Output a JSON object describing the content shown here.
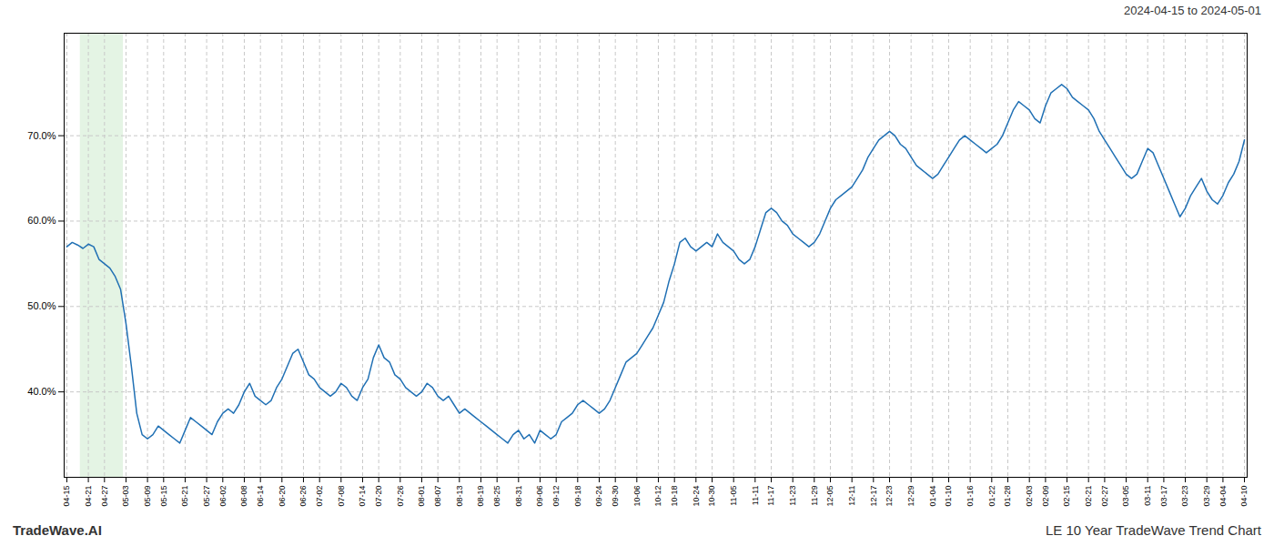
{
  "chart_data": {
    "type": "line",
    "title": "2024-04-15 to 2024-05-01",
    "footer_left": "TradeWave.AI",
    "footer_right": "LE 10 Year TradeWave Trend Chart",
    "color": "#2070b4",
    "ylim": [
      30,
      82
    ],
    "yticks": [
      {
        "value": 40.0,
        "label": "40.0%"
      },
      {
        "value": 50.0,
        "label": "50.0%"
      },
      {
        "value": 60.0,
        "label": "60.0%"
      },
      {
        "value": 70.0,
        "label": "70.0%"
      }
    ],
    "grid": true,
    "highlight": {
      "from": 3,
      "to": 10,
      "color": "#d8f0d8"
    },
    "categories": [
      "04-15",
      null,
      null,
      null,
      "04-21",
      null,
      null,
      "04-27",
      null,
      null,
      null,
      "05-03",
      null,
      null,
      null,
      "05-09",
      null,
      null,
      "05-15",
      null,
      null,
      null,
      "05-21",
      null,
      null,
      null,
      "05-27",
      null,
      null,
      "06-02",
      null,
      null,
      null,
      "06-08",
      null,
      null,
      "06-14",
      null,
      null,
      null,
      "06-20",
      null,
      null,
      null,
      "06-26",
      null,
      null,
      "07-02",
      null,
      null,
      null,
      "07-08",
      null,
      null,
      null,
      "07-14",
      null,
      null,
      "07-20",
      null,
      null,
      null,
      "07-26",
      null,
      null,
      null,
      "08-01",
      null,
      null,
      "08-07",
      null,
      null,
      null,
      "08-13",
      null,
      null,
      null,
      "08-19",
      null,
      null,
      "08-25",
      null,
      null,
      null,
      "08-31",
      null,
      null,
      null,
      "09-06",
      null,
      null,
      "09-12",
      null,
      null,
      null,
      "09-18",
      null,
      null,
      null,
      "09-24",
      null,
      null,
      "09-30",
      null,
      null,
      null,
      "10-06",
      null,
      null,
      null,
      "10-12",
      null,
      null,
      "10-18",
      null,
      null,
      null,
      "10-24",
      null,
      null,
      "10-30",
      null,
      null,
      null,
      "11-05",
      null,
      null,
      null,
      "11-11",
      null,
      null,
      "11-17",
      null,
      null,
      null,
      "11-23",
      null,
      null,
      null,
      "11-29",
      null,
      null,
      "12-05",
      null,
      null,
      null,
      "12-11",
      null,
      null,
      null,
      "12-17",
      null,
      null,
      "12-23",
      null,
      null,
      null,
      "12-29",
      null,
      null,
      null,
      "01-04",
      null,
      null,
      "01-10",
      null,
      null,
      null,
      "01-16",
      null,
      null,
      null,
      "01-22",
      null,
      null,
      "01-28",
      null,
      null,
      null,
      "02-03",
      null,
      null,
      "02-09",
      null,
      null,
      null,
      "02-15",
      null,
      null,
      null,
      "02-21",
      null,
      null,
      "02-27",
      null,
      null,
      null,
      "03-05",
      null,
      null,
      null,
      "03-11",
      null,
      null,
      "03-17",
      null,
      null,
      null,
      "03-23",
      null,
      null,
      null,
      "03-29",
      null,
      null,
      "04-04",
      null,
      null,
      null,
      "04-10"
    ],
    "values": [
      57.0,
      57.5,
      57.2,
      56.8,
      57.3,
      57.0,
      55.5,
      55.0,
      54.5,
      53.5,
      52.0,
      48.0,
      43.0,
      37.5,
      35.0,
      34.5,
      35.0,
      36.0,
      35.5,
      35.0,
      34.5,
      34.0,
      35.5,
      37.0,
      36.5,
      36.0,
      35.5,
      35.0,
      36.5,
      37.5,
      38.0,
      37.5,
      38.5,
      40.0,
      41.0,
      39.5,
      39.0,
      38.5,
      39.0,
      40.5,
      41.5,
      43.0,
      44.5,
      45.0,
      43.5,
      42.0,
      41.5,
      40.5,
      40.0,
      39.5,
      40.0,
      41.0,
      40.5,
      39.5,
      39.0,
      40.5,
      41.5,
      44.0,
      45.5,
      44.0,
      43.5,
      42.0,
      41.5,
      40.5,
      40.0,
      39.5,
      40.0,
      41.0,
      40.5,
      39.5,
      39.0,
      39.5,
      38.5,
      37.5,
      38.0,
      37.5,
      37.0,
      36.5,
      36.0,
      35.5,
      35.0,
      34.5,
      34.0,
      35.0,
      35.5,
      34.5,
      35.0,
      34.0,
      35.5,
      35.0,
      34.5,
      35.0,
      36.5,
      37.0,
      37.5,
      38.5,
      39.0,
      38.5,
      38.0,
      37.5,
      38.0,
      39.0,
      40.5,
      42.0,
      43.5,
      44.0,
      44.5,
      45.5,
      46.5,
      47.5,
      49.0,
      50.5,
      53.0,
      55.0,
      57.5,
      58.0,
      57.0,
      56.5,
      57.0,
      57.5,
      57.0,
      58.5,
      57.5,
      57.0,
      56.5,
      55.5,
      55.0,
      55.5,
      57.0,
      59.0,
      61.0,
      61.5,
      61.0,
      60.0,
      59.5,
      58.5,
      58.0,
      57.5,
      57.0,
      57.5,
      58.5,
      60.0,
      61.5,
      62.5,
      63.0,
      63.5,
      64.0,
      65.0,
      66.0,
      67.5,
      68.5,
      69.5,
      70.0,
      70.5,
      70.0,
      69.0,
      68.5,
      67.5,
      66.5,
      66.0,
      65.5,
      65.0,
      65.5,
      66.5,
      67.5,
      68.5,
      69.5,
      70.0,
      69.5,
      69.0,
      68.5,
      68.0,
      68.5,
      69.0,
      70.0,
      71.5,
      73.0,
      74.0,
      73.5,
      73.0,
      72.0,
      71.5,
      73.5,
      75.0,
      75.5,
      76.0,
      75.5,
      74.5,
      74.0,
      73.5,
      73.0,
      72.0,
      70.5,
      69.5,
      68.5,
      67.5,
      66.5,
      65.5,
      65.0,
      65.5,
      67.0,
      68.5,
      68.0,
      66.5,
      65.0,
      63.5,
      62.0,
      60.5,
      61.5,
      63.0,
      64.0,
      65.0,
      63.5,
      62.5,
      62.0,
      63.0,
      64.5,
      65.5,
      67.0,
      69.5
    ]
  }
}
